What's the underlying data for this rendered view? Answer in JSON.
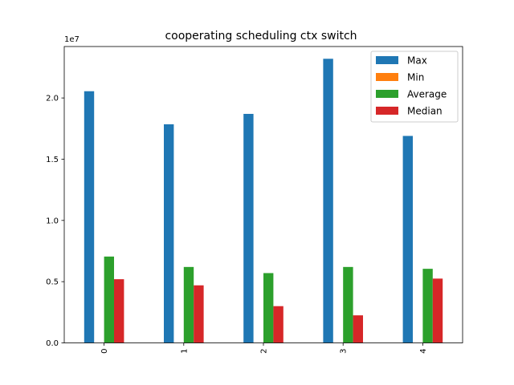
{
  "chart_data": {
    "type": "bar",
    "title": "cooperating scheduling ctx switch",
    "xlabel": "",
    "ylabel": "",
    "y_offset_label": "1e7",
    "categories": [
      "0",
      "1",
      "2",
      "3",
      "4"
    ],
    "series": [
      {
        "name": "Max",
        "color": "#1f77b4",
        "values": [
          20550000,
          17850000,
          18700000,
          23200000,
          16900000
        ]
      },
      {
        "name": "Min",
        "color": "#ff7f0e",
        "values": [
          0,
          0,
          0,
          0,
          0
        ]
      },
      {
        "name": "Average",
        "color": "#2ca02c",
        "values": [
          7050000,
          6200000,
          5700000,
          6200000,
          6050000
        ]
      },
      {
        "name": "Median",
        "color": "#d62728",
        "values": [
          5200000,
          4700000,
          3000000,
          2250000,
          5250000
        ]
      }
    ],
    "ylim": [
      0,
      24200000
    ],
    "yticks": [
      0,
      5000000,
      10000000,
      15000000,
      20000000
    ],
    "ytick_labels": [
      "0.0",
      "0.5",
      "1.0",
      "1.5",
      "2.0"
    ],
    "grid": false,
    "legend_position": "top-right"
  }
}
